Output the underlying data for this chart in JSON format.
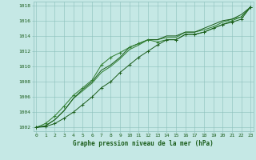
{
  "x": [
    0,
    1,
    2,
    3,
    4,
    5,
    6,
    7,
    8,
    9,
    10,
    11,
    12,
    13,
    14,
    15,
    16,
    17,
    18,
    19,
    20,
    21,
    22,
    23
  ],
  "line_upper": [
    1002.0,
    1002.1,
    1002.5,
    1003.2,
    1004.0,
    1005.0,
    1006.0,
    1007.2,
    1008.0,
    1009.2,
    1010.2,
    1011.2,
    1012.0,
    1012.8,
    1013.5,
    1013.5,
    1014.2,
    1014.2,
    1014.5,
    1015.0,
    1015.5,
    1015.8,
    1016.2,
    1017.8
  ],
  "line_mid1": [
    1002.0,
    1002.2,
    1003.0,
    1004.2,
    1005.8,
    1006.8,
    1007.8,
    1009.2,
    1010.0,
    1011.0,
    1012.2,
    1012.8,
    1013.5,
    1013.5,
    1013.8,
    1013.8,
    1014.5,
    1014.5,
    1014.8,
    1015.2,
    1015.8,
    1016.2,
    1016.5,
    1017.8
  ],
  "line_mid2": [
    1002.0,
    1002.2,
    1003.0,
    1004.2,
    1005.8,
    1007.0,
    1008.0,
    1009.5,
    1010.2,
    1011.2,
    1012.5,
    1013.0,
    1013.5,
    1013.5,
    1014.0,
    1014.0,
    1014.5,
    1014.5,
    1015.0,
    1015.5,
    1016.0,
    1016.2,
    1016.8,
    1017.8
  ],
  "line_lower": [
    1002.0,
    1002.5,
    1003.5,
    1004.8,
    1006.2,
    1007.2,
    1008.2,
    1010.2,
    1011.2,
    1011.8,
    1012.5,
    1013.0,
    1013.5,
    1013.2,
    1013.5,
    1013.5,
    1014.2,
    1014.2,
    1014.5,
    1015.0,
    1015.5,
    1016.0,
    1016.5,
    1017.8
  ],
  "ylim": [
    1001.5,
    1018.5
  ],
  "yticks": [
    1002,
    1004,
    1006,
    1008,
    1010,
    1012,
    1014,
    1016,
    1018
  ],
  "xticks": [
    0,
    1,
    2,
    3,
    4,
    5,
    6,
    7,
    8,
    9,
    10,
    11,
    12,
    13,
    14,
    15,
    16,
    17,
    18,
    19,
    20,
    21,
    22,
    23
  ],
  "bg_color": "#c5e8e5",
  "grid_color": "#8bbfba",
  "line_color_dark": "#1a5c1a",
  "line_color_mid": "#2e7d2e",
  "xlabel": "Graphe pression niveau de la mer (hPa)",
  "tick_label_color": "#1a5c1a",
  "xlabel_color": "#1a5c1a",
  "markersize": 2.5,
  "linewidth": 0.7
}
